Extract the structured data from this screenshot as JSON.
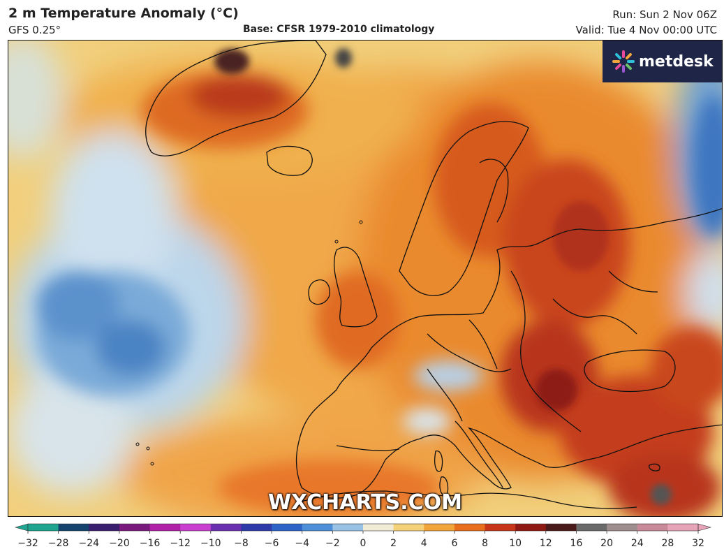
{
  "header": {
    "title": "2 m Temperature Anomaly (°C)",
    "model": "GFS 0.25°",
    "base": "Base: CFSR 1979-2010 climatology",
    "run": "Run: Sun 2 Nov 06Z",
    "valid": "Valid: Tue 4 Nov 00:00 UTC"
  },
  "branding": {
    "logo_text": "metdesk",
    "watermark": "WXCHARTS.COM"
  },
  "colorbar": {
    "ticks": [
      "−32",
      "−28",
      "−24",
      "−20",
      "−16",
      "−12",
      "−10",
      "−8",
      "−6",
      "−4",
      "−2",
      "0",
      "2",
      "4",
      "6",
      "8",
      "10",
      "12",
      "16",
      "20",
      "24",
      "28",
      "32"
    ],
    "colors": [
      "#1fa58f",
      "#14436d",
      "#3a1f6e",
      "#7a1a7e",
      "#b020a8",
      "#c93fcf",
      "#6a2fb0",
      "#2d3aa8",
      "#2e64c8",
      "#4d8fd8",
      "#98c2e6",
      "#f2ecd6",
      "#f5d27a",
      "#f2a53a",
      "#e76f1c",
      "#c8361a",
      "#8e1812",
      "#4a1a1a",
      "#6a6a6a",
      "#9e8e8e",
      "#c98a98",
      "#e7a4b8"
    ],
    "left_end_color": "#1fa58f",
    "right_end_color": "#e7a4b8"
  },
  "colors": {
    "ocean_base": "#f1d58a",
    "cold_anomaly": "#5e96cf",
    "warm_anomaly": "#e56e22",
    "hot_anomaly": "#b8351a",
    "frame": "#111111",
    "logo_bg": "#1e2547"
  }
}
